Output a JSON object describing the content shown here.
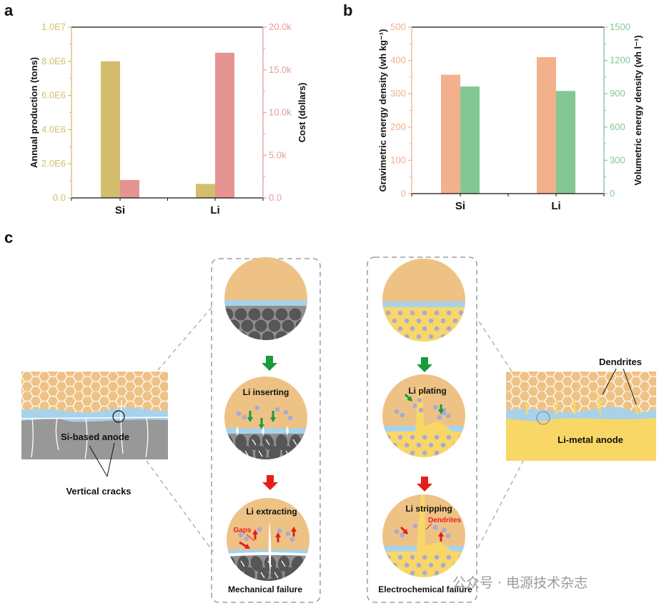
{
  "panel_labels": {
    "a": "a",
    "b": "b",
    "c": "c"
  },
  "chart_data": [
    {
      "type": "bar",
      "panel": "a",
      "categories": [
        "Si",
        "Li"
      ],
      "ylabel": "Annual production (tons)",
      "y2label": "Cost (dollars)",
      "ylim": [
        0,
        10000000
      ],
      "y2lim": [
        0,
        20000
      ],
      "yticks": [
        0,
        2000000,
        4000000,
        6000000,
        8000000,
        10000000
      ],
      "ytick_labels": [
        "0.0",
        "2.0E6",
        "4.0E6",
        "6.0E6",
        "8.0E6",
        "1.0E7"
      ],
      "y2ticks": [
        0,
        5000,
        10000,
        15000,
        20000
      ],
      "y2tick_labels": [
        "0.0",
        "5.0k",
        "10.0k",
        "15.0k",
        "20.0k"
      ],
      "grid": false,
      "series": [
        {
          "axis": "left",
          "color": "#d4bd6c",
          "values": [
            8000000,
            820000
          ]
        },
        {
          "axis": "right",
          "color": "#e69393",
          "values": [
            2100,
            17000
          ]
        }
      ]
    },
    {
      "type": "bar",
      "panel": "b",
      "categories": [
        "Si",
        "Li"
      ],
      "ylabel": "Gravimetric energy density (wh kg⁻¹)",
      "y2label": "Volumetric energy density (wh l⁻¹)",
      "ylim": [
        0,
        500
      ],
      "y2lim": [
        0,
        1500
      ],
      "yticks": [
        0,
        100,
        200,
        300,
        400,
        500
      ],
      "ytick_labels": [
        "0",
        "100",
        "200",
        "300",
        "400",
        "500"
      ],
      "y2ticks": [
        0,
        300,
        600,
        900,
        1200,
        1500
      ],
      "y2tick_labels": [
        "0",
        "300",
        "600",
        "900",
        "1200",
        "1500"
      ],
      "grid": false,
      "series": [
        {
          "axis": "left",
          "color": "#f2b18c",
          "values": [
            357,
            410
          ]
        },
        {
          "axis": "right",
          "color": "#83c794",
          "values": [
            965,
            925
          ]
        }
      ]
    }
  ],
  "diagram": {
    "si_anode": "Si-based anode",
    "vertical_cracks": "Vertical cracks",
    "li_inserting": "Li inserting",
    "li_extracting": "Li extracting",
    "gaps": "Gaps",
    "mechanical_failure": "Mechanical failure",
    "li_plating": "Li plating",
    "li_stripping": "Li stripping",
    "dendrites_inner": "Dendrites",
    "electrochemical_failure": "Electrochemical failure",
    "dendrites": "Dendrites",
    "li_metal_anode": "Li-metal anode",
    "colors": {
      "electrolyte": "#eec285",
      "sei": "#a8d2ea",
      "si": "#8f8f8f",
      "si_particle": "#565656",
      "li_metal": "#f9d767",
      "li_ion": "#a9a9d9",
      "insert_arrow": "#1a9a3a",
      "extract_arrow": "#e41e1a"
    }
  },
  "watermark": "公众号 · 电源技术杂志"
}
